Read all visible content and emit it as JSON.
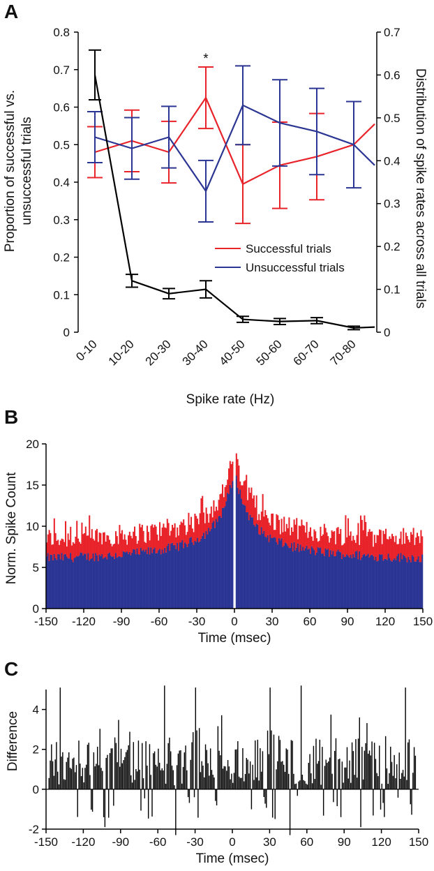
{
  "chart_data": [
    {
      "panel": "A",
      "type": "line",
      "categories": [
        "0-10",
        "10-20",
        "20-30",
        "30-40",
        "40-50",
        "50-60",
        "60-70",
        "70-80"
      ],
      "xlabel": "Spike rate (Hz)",
      "ylabel_left": "Proportion of successful vs. unsuccessful trials",
      "ylabel_left_lines": [
        "Proportion of successful vs.",
        "unsuccessful trials"
      ],
      "ylabel_right": "Distribution of spike rates across all trials",
      "ylim_left": [
        0,
        0.8
      ],
      "ylim_right": [
        0,
        0.7
      ],
      "yticks_left": [
        "0",
        "0.1",
        "0.2",
        "0.3",
        "0.4",
        "0.5",
        "0.6",
        "0.7",
        "0.8"
      ],
      "yticks_right": [
        "0",
        "0.1",
        "0.2",
        "0.3",
        "0.4",
        "0.5",
        "0.6",
        "0.7"
      ],
      "annotation": "*",
      "annotation_category": "30-40",
      "series": [
        {
          "name": "Successful trials",
          "color": "#e8232a",
          "axis": "left",
          "values": [
            0.48,
            0.51,
            0.48,
            0.625,
            0.395,
            0.445,
            0.468,
            0.5
          ],
          "error": [
            0.068,
            0.082,
            0.082,
            0.082,
            0.105,
            0.115,
            0.115,
            0
          ],
          "tail_value": 0.555
        },
        {
          "name": "Unsuccessful trials",
          "color": "#2b3593",
          "axis": "left",
          "values": [
            0.52,
            0.49,
            0.52,
            0.376,
            0.605,
            0.558,
            0.535,
            0.5
          ],
          "error": [
            0.068,
            0.082,
            0.082,
            0.082,
            0.105,
            0.115,
            0.115,
            0.115
          ],
          "tail_value": 0.445
        },
        {
          "name": "Distribution of spike rates",
          "color": "#000000",
          "axis": "right",
          "values": [
            0.6,
            0.12,
            0.09,
            0.1,
            0.03,
            0.025,
            0.027,
            0.01
          ],
          "error": [
            0.058,
            0.015,
            0.012,
            0.02,
            0.007,
            0.007,
            0.007,
            0.004
          ],
          "tail_value": 0.012
        }
      ],
      "legend": [
        "Successful trials",
        "Unsuccessful trials"
      ],
      "legend_position": "center-right"
    },
    {
      "panel": "B",
      "type": "bar",
      "title": "",
      "xlabel": "Time (msec)",
      "ylabel": "Norm. Spike Count",
      "xlim": [
        -150,
        150
      ],
      "ylim": [
        0,
        20
      ],
      "xticks": [
        "-150",
        "-120",
        "-90",
        "-60",
        "-30",
        "0",
        "30",
        "60",
        "90",
        "120",
        "150"
      ],
      "yticks": [
        "0",
        "5",
        "10",
        "15",
        "20"
      ],
      "series": [
        {
          "name": "Successful trials",
          "color": "#e8232a"
        },
        {
          "name": "Unsuccessful trials",
          "color": "#2b3593"
        }
      ],
      "envelope_blue": {
        "edge": 6.0,
        "center": 16.8
      },
      "envelope_red": {
        "edge": 8.4,
        "center": 19.0
      },
      "bin_width_msec": 1,
      "gap_at_msec": 0
    },
    {
      "panel": "C",
      "type": "bar",
      "xlabel": "Time (msec)",
      "ylabel": "Difference",
      "xlim": [
        -150,
        150
      ],
      "ylim": [
        -2,
        5
      ],
      "xticks": [
        "-150",
        "-120",
        "-90",
        "-60",
        "-30",
        "0",
        "30",
        "60",
        "90",
        "120",
        "150"
      ],
      "yticks": [
        "-2",
        "0",
        "2",
        "4"
      ],
      "series": [
        {
          "name": "Difference",
          "color": "#000000"
        }
      ],
      "peaks": [
        {
          "x": -139,
          "y": 5.1
        },
        {
          "x": -55,
          "y": 5.2
        },
        {
          "x": -30,
          "y": 5.1
        },
        {
          "x": 30,
          "y": 5.1
        },
        {
          "x": 55,
          "y": 5.2
        },
        {
          "x": 139,
          "y": 5.1
        }
      ],
      "troughs": [
        {
          "x": -103,
          "y": -1.9
        },
        {
          "x": -46,
          "y": -2.3
        },
        {
          "x": 46,
          "y": -2.3
        },
        {
          "x": 103,
          "y": -1.9
        }
      ]
    }
  ]
}
